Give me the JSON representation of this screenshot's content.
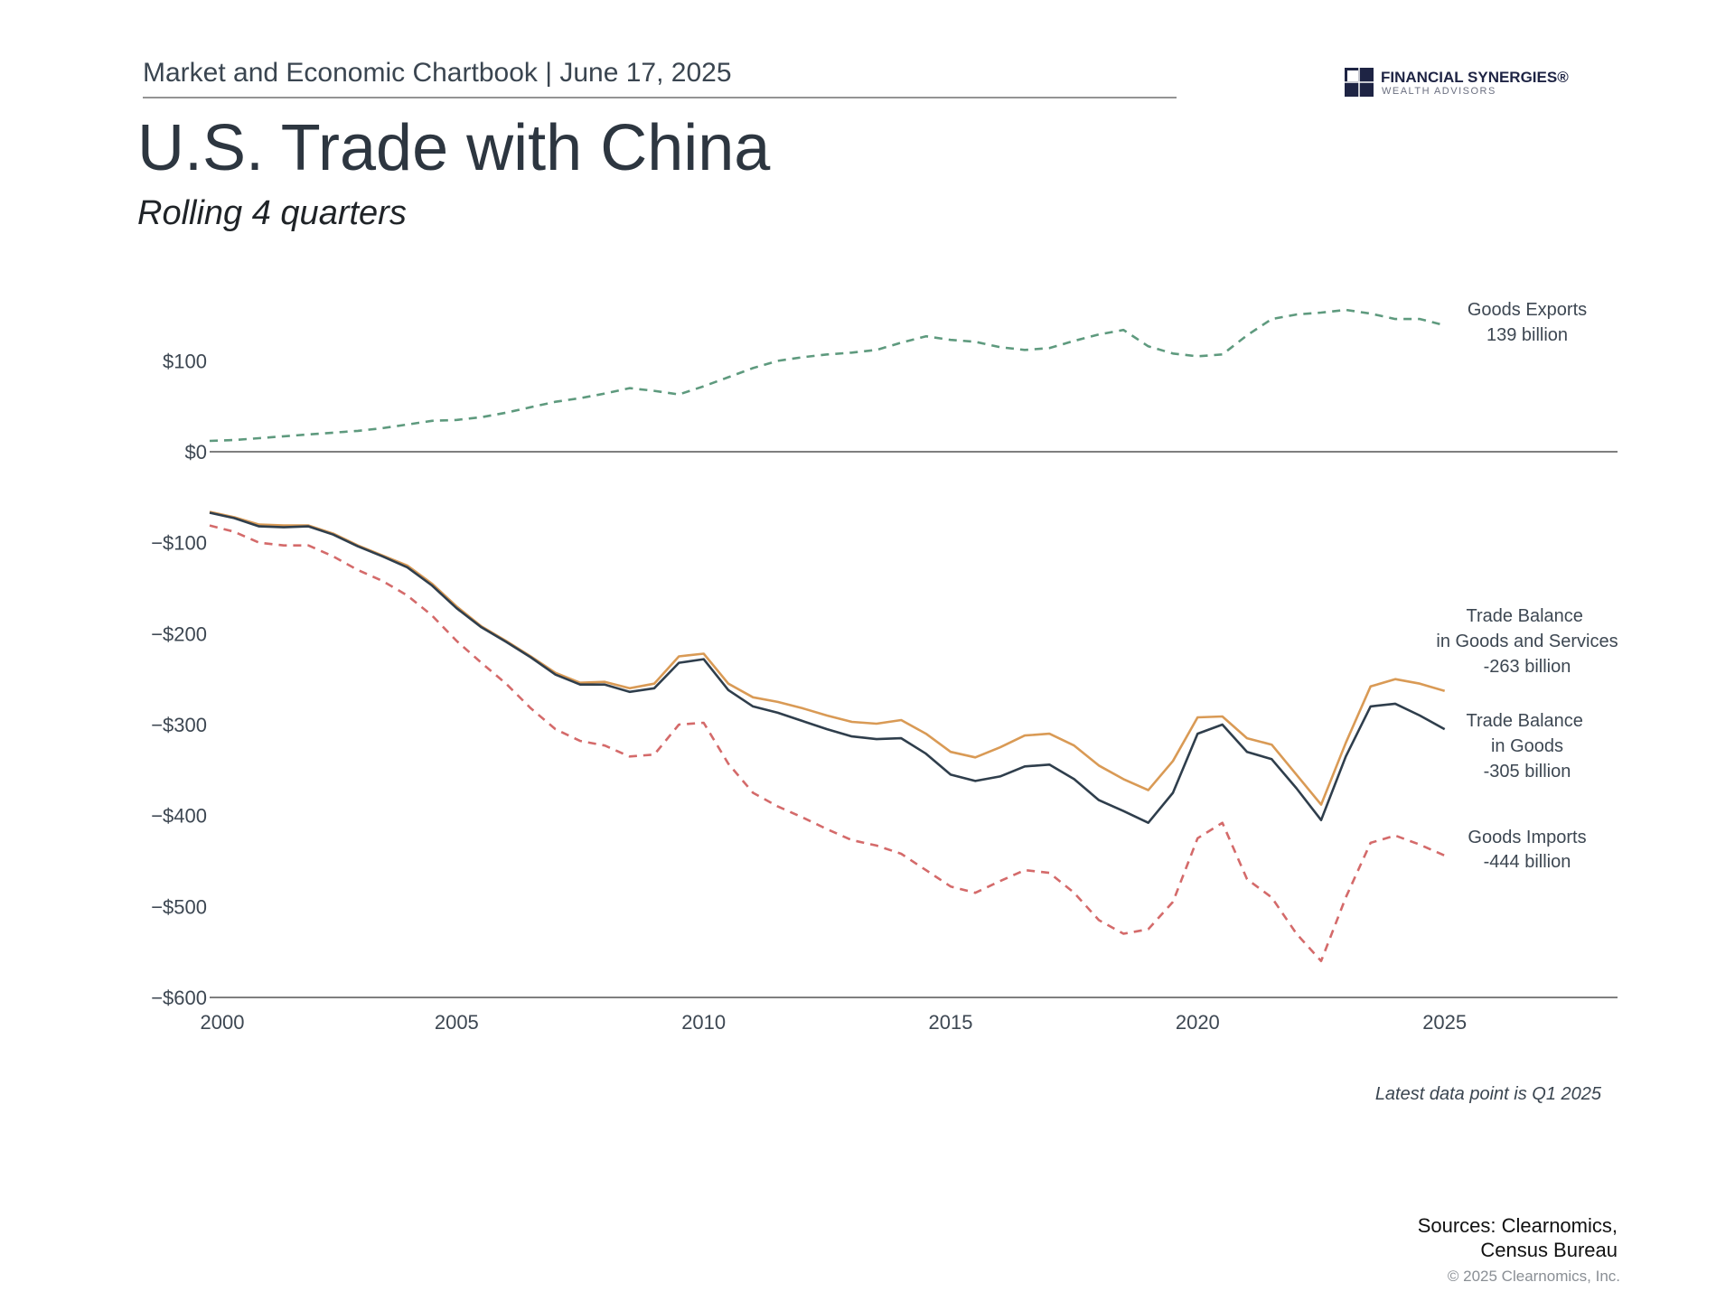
{
  "header": {
    "chartbook": "Market and Economic Chartbook | June 17, 2025",
    "logo_name": "FINANCIAL SYNERGIES®",
    "logo_sub": "WEALTH ADVISORS"
  },
  "chart_data": {
    "type": "line",
    "title": "U.S. Trade with China",
    "subtitle": "Rolling 4 quarters",
    "note": "Latest data point is Q1 2025",
    "sources": [
      "Sources: Clearnomics,",
      "Census Bureau"
    ],
    "copyright": "© 2025 Clearnomics, Inc.",
    "x": [
      2000,
      2000.5,
      2001,
      2001.5,
      2002,
      2002.5,
      2003,
      2003.5,
      2004,
      2004.5,
      2005,
      2005.5,
      2006,
      2006.5,
      2007,
      2007.5,
      2008,
      2008.5,
      2009,
      2009.5,
      2010,
      2010.5,
      2011,
      2011.5,
      2012,
      2012.5,
      2013,
      2013.5,
      2014,
      2014.5,
      2015,
      2015.5,
      2016,
      2016.5,
      2017,
      2017.5,
      2018,
      2018.5,
      2019,
      2019.5,
      2020,
      2020.5,
      2021,
      2021.5,
      2022,
      2022.5,
      2023,
      2023.5,
      2024,
      2024.5,
      2025
    ],
    "xlim": [
      2000,
      2028.5
    ],
    "xticks": [
      2000,
      2005,
      2010,
      2015,
      2020,
      2025
    ],
    "ylim": [
      -600,
      160
    ],
    "yticks": [
      {
        "value": 100,
        "label": "$100"
      },
      {
        "value": 0,
        "label": "$0"
      },
      {
        "value": -100,
        "label": "−$100"
      },
      {
        "value": -200,
        "label": "−$200"
      },
      {
        "value": -300,
        "label": "−$300"
      },
      {
        "value": -400,
        "label": "−$400"
      },
      {
        "value": -500,
        "label": "−$500"
      },
      {
        "value": -600,
        "label": "−$600"
      }
    ],
    "grid": false,
    "series": [
      {
        "name": "Goods Exports",
        "end_label": "139 billion",
        "color": "#5e9a7e",
        "dashed": true,
        "values": [
          12,
          13,
          15,
          17,
          19,
          21,
          23,
          26,
          30,
          34,
          35,
          38,
          43,
          49,
          55,
          59,
          64,
          70,
          67,
          63,
          72,
          82,
          92,
          100,
          104,
          107,
          109,
          112,
          120,
          127,
          123,
          121,
          115,
          112,
          114,
          122,
          129,
          134,
          116,
          108,
          105,
          107,
          128,
          146,
          151,
          153,
          156,
          152,
          146,
          146,
          139
        ]
      },
      {
        "name": "Trade Balance in Goods and Services",
        "end_label": "-263 billion",
        "color": "#d99a55",
        "dashed": false,
        "values": [
          -66,
          -72,
          -80,
          -81,
          -81,
          -90,
          -103,
          -114,
          -125,
          -145,
          -170,
          -192,
          -208,
          -225,
          -243,
          -254,
          -253,
          -260,
          -255,
          -225,
          -222,
          -255,
          -270,
          -275,
          -282,
          -290,
          -297,
          -299,
          -295,
          -310,
          -330,
          -336,
          -325,
          -312,
          -310,
          -323,
          -345,
          -360,
          -372,
          -340,
          -292,
          -291,
          -315,
          -322,
          -355,
          -388,
          -320,
          -258,
          -250,
          -255,
          -263
        ]
      },
      {
        "name": "Trade Balance in Goods",
        "end_label": "-305 billion",
        "color": "#2f3e4c",
        "dashed": false,
        "values": [
          -67,
          -73,
          -82,
          -83,
          -82,
          -91,
          -104,
          -115,
          -127,
          -147,
          -172,
          -193,
          -209,
          -226,
          -245,
          -256,
          -256,
          -264,
          -260,
          -232,
          -228,
          -262,
          -280,
          -287,
          -296,
          -305,
          -313,
          -316,
          -315,
          -332,
          -355,
          -362,
          -357,
          -346,
          -344,
          -360,
          -383,
          -395,
          -408,
          -375,
          -310,
          -300,
          -330,
          -338,
          -370,
          -405,
          -335,
          -280,
          -277,
          -290,
          -305
        ]
      },
      {
        "name": "Goods Imports",
        "end_label": "-444 billion",
        "color": "#d46a6a",
        "dashed": true,
        "values": [
          -81,
          -88,
          -100,
          -103,
          -103,
          -115,
          -130,
          -142,
          -158,
          -180,
          -208,
          -232,
          -255,
          -282,
          -305,
          -318,
          -323,
          -335,
          -333,
          -300,
          -298,
          -343,
          -375,
          -390,
          -402,
          -415,
          -427,
          -433,
          -442,
          -460,
          -478,
          -485,
          -472,
          -460,
          -463,
          -485,
          -515,
          -530,
          -525,
          -495,
          -425,
          -408,
          -470,
          -490,
          -530,
          -560,
          -490,
          -430,
          -422,
          -432,
          -444
        ]
      }
    ]
  }
}
